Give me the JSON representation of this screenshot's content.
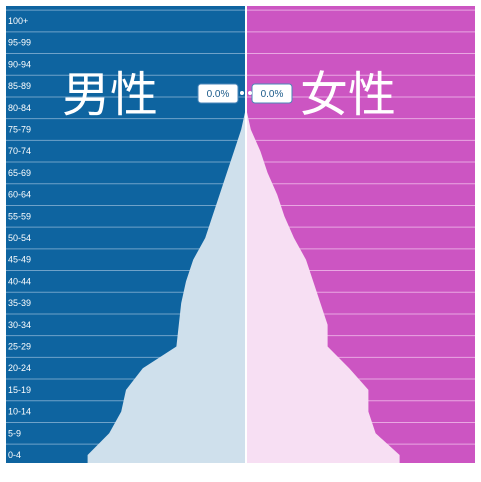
{
  "colors": {
    "male_bg": "#0e64a0",
    "female_bg": "#cc55c2",
    "male_fill": "#cfe0ec",
    "female_fill": "#f7dff3",
    "center_line": "#ffffff",
    "row_line": "#e9a7e2",
    "row_line_male": "#6fa2c9"
  },
  "labels": {
    "male": "男性",
    "female": "女性",
    "male_readout": "0.0%",
    "female_readout": "0.0%"
  },
  "chart_data": {
    "type": "bar",
    "orientation": "horizontal-pyramid",
    "categories": [
      "0-4",
      "5-9",
      "10-14",
      "15-19",
      "20-24",
      "25-29",
      "30-34",
      "35-39",
      "40-44",
      "45-49",
      "50-54",
      "55-59",
      "60-64",
      "65-69",
      "70-74",
      "75-79",
      "80-84",
      "85-89",
      "90-94",
      "95-99",
      "100+"
    ],
    "series": [
      {
        "name": "男性",
        "values": [
          6.6,
          5.7,
          5.2,
          5.0,
          4.3,
          2.9,
          2.8,
          2.7,
          2.5,
          2.2,
          1.7,
          1.4,
          1.1,
          0.8,
          0.5,
          0.2,
          0.0,
          0.0,
          0.0,
          0.0,
          0.0
        ]
      },
      {
        "name": "女性",
        "values": [
          6.4,
          5.4,
          5.1,
          5.1,
          4.3,
          3.4,
          3.4,
          3.1,
          2.8,
          2.5,
          2.0,
          1.6,
          1.3,
          0.9,
          0.6,
          0.2,
          0.0,
          0.0,
          0.0,
          0.0,
          0.0
        ]
      }
    ],
    "x_ticks_male": [
      "7.5%",
      "5%",
      "2.5%"
    ],
    "x_tick_values_male": [
      7.5,
      5,
      2.5
    ],
    "x_ticks_female": [
      "2.5%",
      "5%",
      "7.5%"
    ],
    "x_tick_values_female": [
      2.5,
      5,
      7.5
    ],
    "xlim": [
      0,
      8
    ],
    "grid": true
  }
}
